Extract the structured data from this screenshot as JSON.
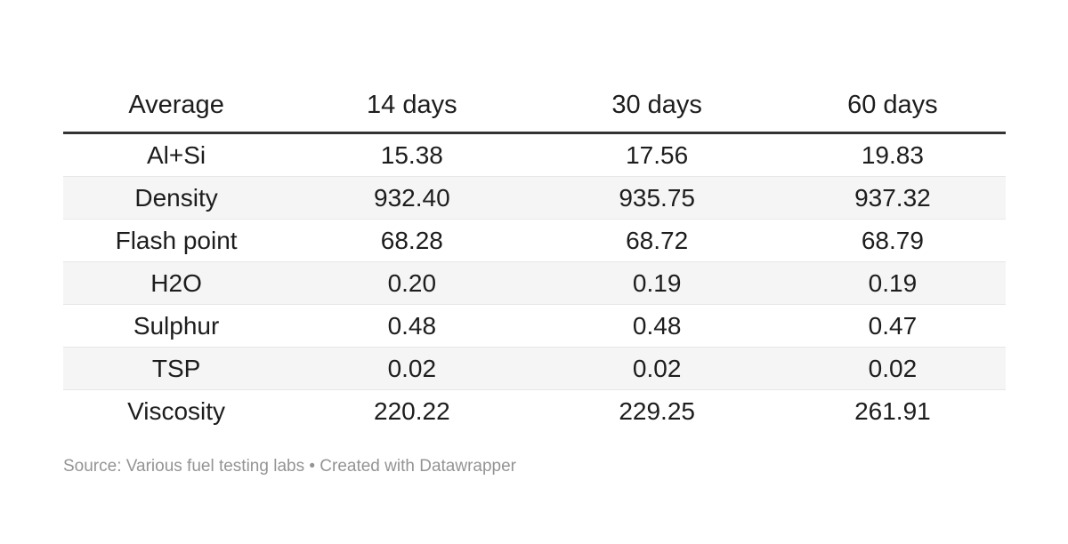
{
  "table": {
    "columns": [
      "Average",
      "14 days",
      "30 days",
      "60 days"
    ],
    "rows": [
      {
        "label": "Al+Si",
        "values": [
          "15.38",
          "17.56",
          "19.83"
        ]
      },
      {
        "label": "Density",
        "values": [
          "932.40",
          "935.75",
          "937.32"
        ]
      },
      {
        "label": "Flash point",
        "values": [
          "68.28",
          "68.72",
          "68.79"
        ]
      },
      {
        "label": "H2O",
        "values": [
          "0.20",
          "0.19",
          "0.19"
        ]
      },
      {
        "label": "Sulphur",
        "values": [
          "0.48",
          "0.48",
          "0.47"
        ]
      },
      {
        "label": "TSP",
        "values": [
          "0.02",
          "0.02",
          "0.02"
        ]
      },
      {
        "label": "Viscosity",
        "values": [
          "220.22",
          "229.25",
          "261.91"
        ]
      }
    ]
  },
  "footer": {
    "text": "Source: Various fuel testing labs • Created with Datawrapper"
  },
  "colors": {
    "text": "#1d1d1d",
    "header_rule": "#333333",
    "row_separator": "#e7e7e7",
    "stripe": "#f5f5f5",
    "footer_text": "#949494",
    "background": "#ffffff"
  },
  "chart_data": {
    "type": "table",
    "title": "",
    "columns": [
      "Average",
      "14 days",
      "30 days",
      "60 days"
    ],
    "rows": [
      [
        "Al+Si",
        15.38,
        17.56,
        19.83
      ],
      [
        "Density",
        932.4,
        935.75,
        937.32
      ],
      [
        "Flash point",
        68.28,
        68.72,
        68.79
      ],
      [
        "H2O",
        0.2,
        0.19,
        0.19
      ],
      [
        "Sulphur",
        0.48,
        0.48,
        0.47
      ],
      [
        "TSP",
        0.02,
        0.02,
        0.02
      ],
      [
        "Viscosity",
        220.22,
        229.25,
        261.91
      ]
    ],
    "layout_hints": {
      "zebra_striped_rows": [
        2,
        4,
        6
      ],
      "alignment": "center",
      "header_rule": "thick-dark"
    },
    "source_note": "Source: Various fuel testing labs • Created with Datawrapper"
  }
}
